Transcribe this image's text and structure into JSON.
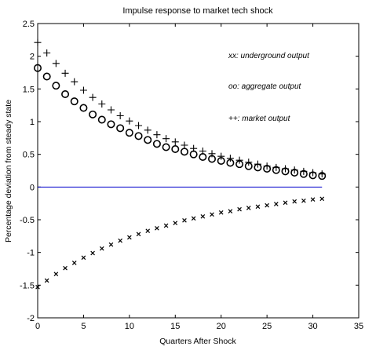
{
  "chart_data": {
    "type": "scatter",
    "title": "Impulse response to market tech shock",
    "xlabel": "Quarters After Shock",
    "ylabel": "Percentage deviation from steady state",
    "xlim": [
      0,
      35
    ],
    "ylim": [
      -2,
      2.5
    ],
    "xticks": [
      "0",
      "5",
      "10",
      "15",
      "20",
      "25",
      "30",
      "35"
    ],
    "yticks": [
      "-2",
      "-1.5",
      "-1",
      "-0.5",
      "0",
      "0.5",
      "1",
      "1.5",
      "2",
      "2.5"
    ],
    "grid": false,
    "legend_position": "top-right",
    "zero_line_color": "#0000cc",
    "x": [
      0,
      1,
      2,
      3,
      4,
      5,
      6,
      7,
      8,
      9,
      10,
      11,
      12,
      13,
      14,
      15,
      16,
      17,
      18,
      19,
      20,
      21,
      22,
      23,
      24,
      25,
      26,
      27,
      28,
      29,
      30,
      31
    ],
    "series": [
      {
        "name": "xx: underground output",
        "marker": "x",
        "values": [
          -1.53,
          -1.43,
          -1.33,
          -1.24,
          -1.16,
          -1.08,
          -1.01,
          -0.94,
          -0.88,
          -0.82,
          -0.77,
          -0.72,
          -0.67,
          -0.63,
          -0.59,
          -0.55,
          -0.51,
          -0.48,
          -0.45,
          -0.42,
          -0.39,
          -0.37,
          -0.34,
          -0.32,
          -0.3,
          -0.28,
          -0.26,
          -0.24,
          -0.22,
          -0.21,
          -0.19,
          -0.18
        ]
      },
      {
        "name": "oo: aggregate output",
        "marker": "o",
        "values": [
          1.82,
          1.69,
          1.55,
          1.42,
          1.31,
          1.21,
          1.11,
          1.03,
          0.96,
          0.9,
          0.83,
          0.78,
          0.72,
          0.66,
          0.61,
          0.58,
          0.54,
          0.5,
          0.46,
          0.43,
          0.4,
          0.37,
          0.35,
          0.32,
          0.3,
          0.28,
          0.26,
          0.24,
          0.22,
          0.2,
          0.18,
          0.17
        ]
      },
      {
        "name": "++: market output",
        "marker": "+",
        "values": [
          2.21,
          2.05,
          1.89,
          1.74,
          1.61,
          1.48,
          1.37,
          1.27,
          1.18,
          1.09,
          1.01,
          0.94,
          0.87,
          0.8,
          0.74,
          0.69,
          0.64,
          0.59,
          0.55,
          0.51,
          0.47,
          0.44,
          0.41,
          0.38,
          0.35,
          0.32,
          0.3,
          0.28,
          0.26,
          0.24,
          0.22,
          0.2
        ]
      }
    ]
  }
}
